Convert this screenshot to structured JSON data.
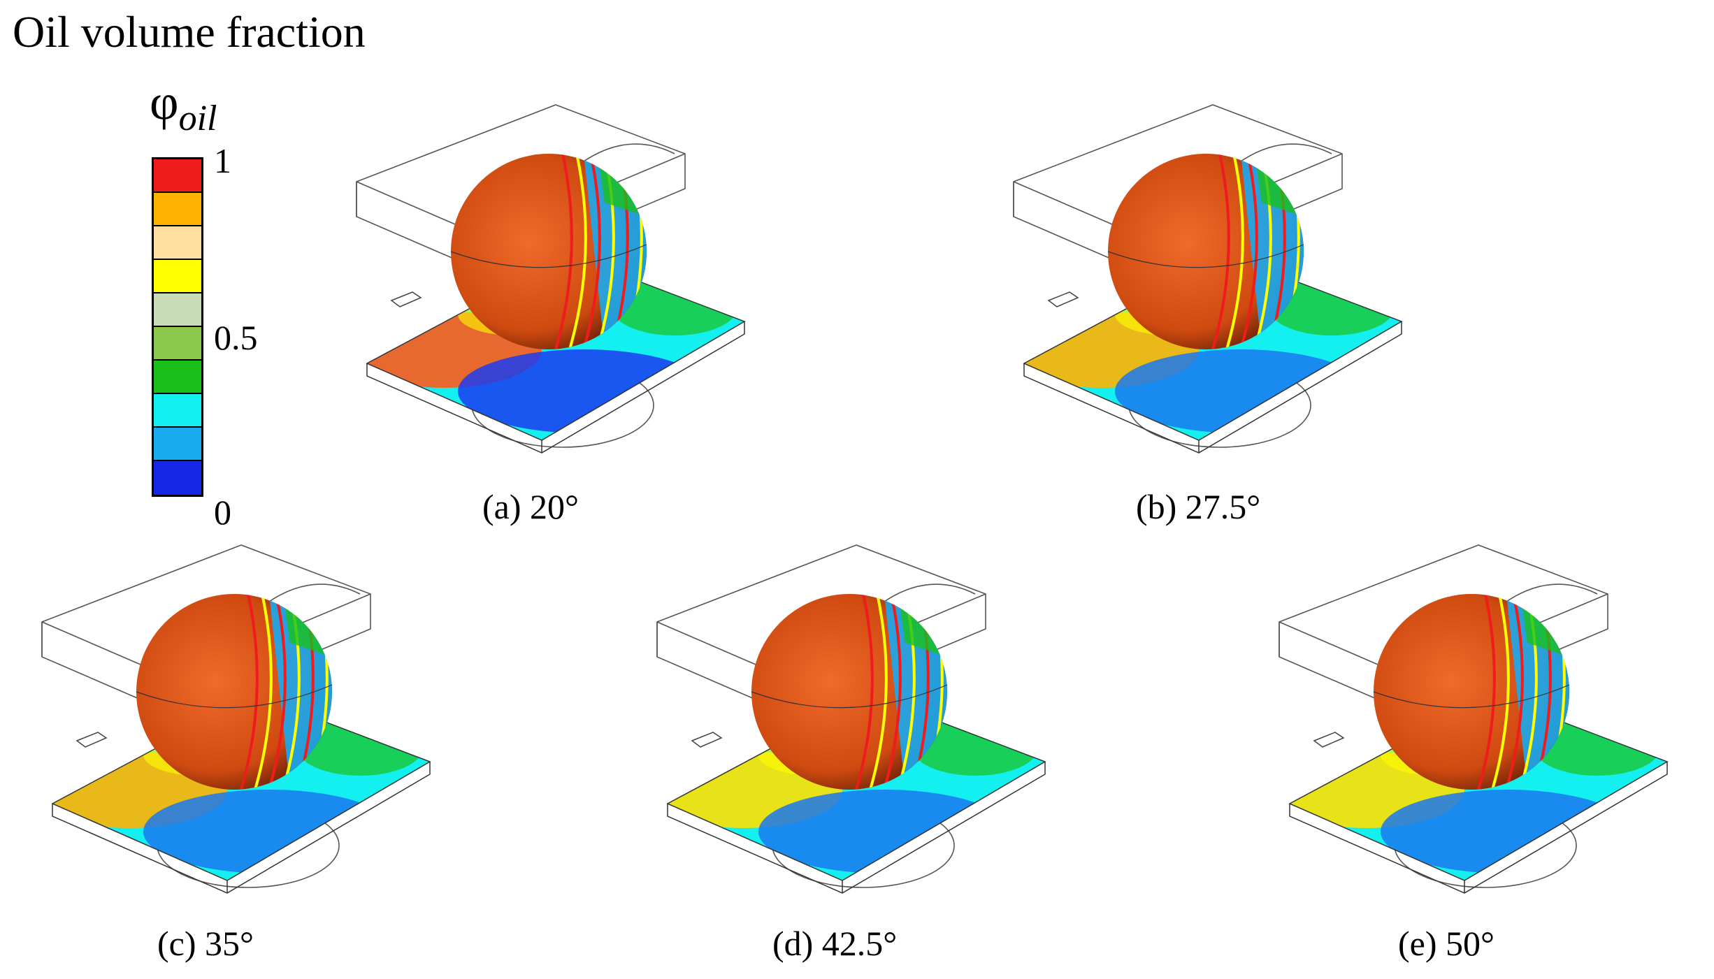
{
  "legend": {
    "title": "Oil volume fraction",
    "symbol": "φ",
    "symbol_subscript": "oil",
    "ticks": {
      "max": "1",
      "mid": "0.5",
      "min": "0"
    },
    "colors": [
      "#ee1c1c",
      "#ffb300",
      "#ffe0a0",
      "#ffff00",
      "#c8dcb8",
      "#8cc84a",
      "#19c019",
      "#14f0f0",
      "#19aaf0",
      "#1428e6"
    ]
  },
  "panels": [
    {
      "caption": "(a) 20°",
      "oil_colors": {
        "ball": "#cf4a10",
        "plate_warm": "#ff5a1a",
        "plate_cool": "#1a3cf0"
      }
    },
    {
      "caption": "(b) 27.5°",
      "oil_colors": {
        "ball": "#cf4a10",
        "plate_warm": "#ffb300",
        "plate_cool": "#1a78f0"
      }
    },
    {
      "caption": "(c) 35°",
      "oil_colors": {
        "ball": "#cf4a10",
        "plate_warm": "#ffb300",
        "plate_cool": "#1a78f0"
      }
    },
    {
      "caption": "(d) 42.5°",
      "oil_colors": {
        "ball": "#cf4a10",
        "plate_warm": "#ffe000",
        "plate_cool": "#1a78f0"
      }
    },
    {
      "caption": "(e) 50°",
      "oil_colors": {
        "ball": "#cf4a10",
        "plate_warm": "#ffe000",
        "plate_cool": "#1a78f0"
      }
    }
  ]
}
